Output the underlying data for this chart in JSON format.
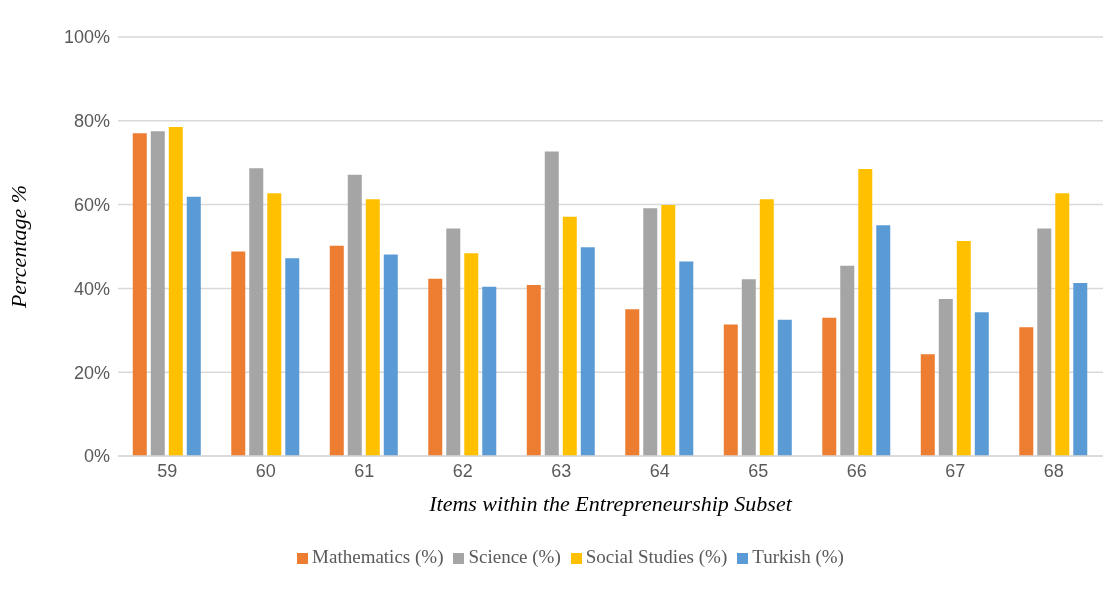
{
  "chart_data": {
    "type": "bar",
    "xlabel": "Items within the Entrepreneurship Subset",
    "ylabel": "Percentage %",
    "categories": [
      "59",
      "60",
      "61",
      "62",
      "63",
      "64",
      "65",
      "66",
      "67",
      "68"
    ],
    "series": [
      {
        "name": "Mathematics (%)",
        "color": "#ed7d31",
        "values": [
          77.0,
          48.8,
          50.2,
          42.3,
          40.8,
          35.0,
          31.4,
          33.0,
          24.3,
          30.7
        ]
      },
      {
        "name": "Science (%)",
        "color": "#a5a5a5",
        "values": [
          77.5,
          68.7,
          67.1,
          54.3,
          72.7,
          59.1,
          42.2,
          45.4,
          37.5,
          54.3
        ]
      },
      {
        "name": "Social Studies (%)",
        "color": "#ffc000",
        "values": [
          78.5,
          62.7,
          61.3,
          48.4,
          57.1,
          59.9,
          61.3,
          68.5,
          51.3,
          62.7
        ]
      },
      {
        "name": "Turkish (%)",
        "color": "#5b9bd5",
        "values": [
          61.9,
          47.2,
          48.1,
          40.4,
          49.8,
          46.4,
          32.5,
          55.1,
          34.3,
          41.3
        ]
      }
    ],
    "ylim": [
      0,
      100
    ],
    "yticks": [
      {
        "value": 0,
        "label": "0%"
      },
      {
        "value": 20,
        "label": "20%"
      },
      {
        "value": 40,
        "label": "40%"
      },
      {
        "value": 60,
        "label": "60%"
      },
      {
        "value": 80,
        "label": "80%"
      },
      {
        "value": 100,
        "label": "100%"
      }
    ],
    "grid": "y",
    "legend": "bottom"
  }
}
